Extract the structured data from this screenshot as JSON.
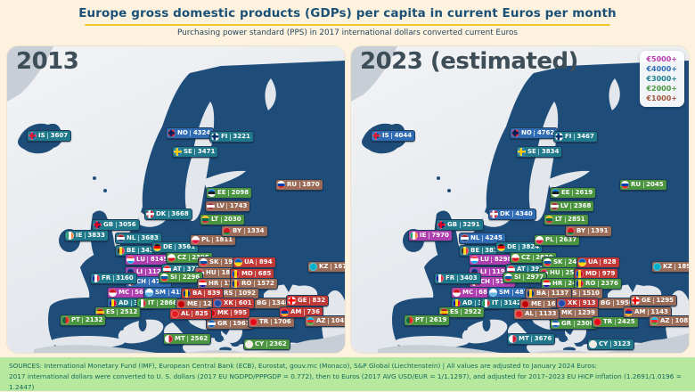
{
  "header": {
    "title": "Europe gross domestic products (GDPs) per capita in current Euros per month",
    "subtitle": "Purchasing power standard (PPS) in 2017 international dollars converted current Euros"
  },
  "legend": {
    "items": [
      {
        "label": "€5000+",
        "color": "#b93bb0"
      },
      {
        "label": "€4000+",
        "color": "#2e6db6"
      },
      {
        "label": "€3000+",
        "color": "#1f8090"
      },
      {
        "label": "€2000+",
        "color": "#4b9540"
      },
      {
        "label": "€1000+",
        "color": "#a5573e"
      }
    ]
  },
  "value_colors": {
    "band5000": "#ae3fae",
    "band4000": "#2f6cb4",
    "band3000": "#20798b",
    "band2000": "#4b9540",
    "band1000": "#9a6c58",
    "band0": "#c13a38"
  },
  "map_colors": {
    "land": "#1e4d7a",
    "outland": "#c8ced6",
    "sea": "#e3e7ec"
  },
  "chart_data": {
    "type": "table",
    "title": "Europe gross domestic products (GDPs) per capita in current Euros per month",
    "categories": [
      "IS",
      "NO",
      "SE",
      "FI",
      "DK",
      "GB",
      "IE",
      "NL",
      "BE",
      "DE",
      "LU",
      "LI",
      "CH",
      "FR",
      "MC",
      "SM",
      "AD",
      "AT",
      "CZ",
      "PL",
      "SK",
      "HU",
      "SI",
      "HR",
      "IT",
      "ES",
      "PT",
      "MT",
      "GR",
      "CY",
      "EE",
      "LV",
      "LT",
      "BY",
      "RU",
      "UA",
      "MD",
      "RO",
      "BG",
      "RS",
      "BA",
      "ME",
      "XK",
      "MK",
      "AL",
      "TR",
      "GE",
      "AM",
      "AZ",
      "KZ"
    ],
    "series": [
      {
        "name": "2013",
        "values": [
          3607,
          4324,
          3471,
          3221,
          3668,
          3056,
          3833,
          3683,
          3436,
          3561,
          8145,
          11276,
          4754,
          3160,
          5652,
          4158,
          3946,
          3780,
          2395,
          1811,
          1947,
          1815,
          2296,
          1708,
          2866,
          2512,
          2132,
          2562,
          1961,
          2362,
          2098,
          1743,
          2030,
          1334,
          1870,
          894,
          685,
          1572,
          1348,
          1092,
          839,
          1233,
          601,
          995,
          825,
          1706,
          832,
          736,
          1045,
          1677
        ]
      },
      {
        "name": "2023 (estimated)",
        "values": [
          4044,
          4762,
          3834,
          3467,
          4340,
          3291,
          7970,
          4245,
          3811,
          3824,
          8298,
          11974,
          5184,
          3403,
          6887,
          4872,
          3951,
          3999,
          2839,
          2637,
          2445,
          2525,
          2977,
          2482,
          3142,
          2922,
          2619,
          3676,
          2308,
          3123,
          2619,
          2368,
          2851,
          1391,
          2045,
          828,
          979,
          2376,
          1956,
          1510,
          1137,
          1621,
          913,
          1239,
          1133,
          2425,
          1295,
          1143,
          1082,
          1894
        ]
      }
    ]
  },
  "footer": {
    "line1": "SOURCES: International Monetary Fund (IMF), European Central Bank (ECB), Eurostat, gouv.mc (Monaco), S&P Global (Liechtenstein) | All values are adjusted to January 2024 Euros:",
    "line2": "2017 international dollars were converted to U. S. dollars (2017 EU NGDPD/PPPGDP = 0.772), then to Euros (2017 AVG USD/EUR = 1/1.1297), and adjusted for 2017–2023 EU HICP inflation (1.2691/1.0196 = 1.2447)"
  }
}
